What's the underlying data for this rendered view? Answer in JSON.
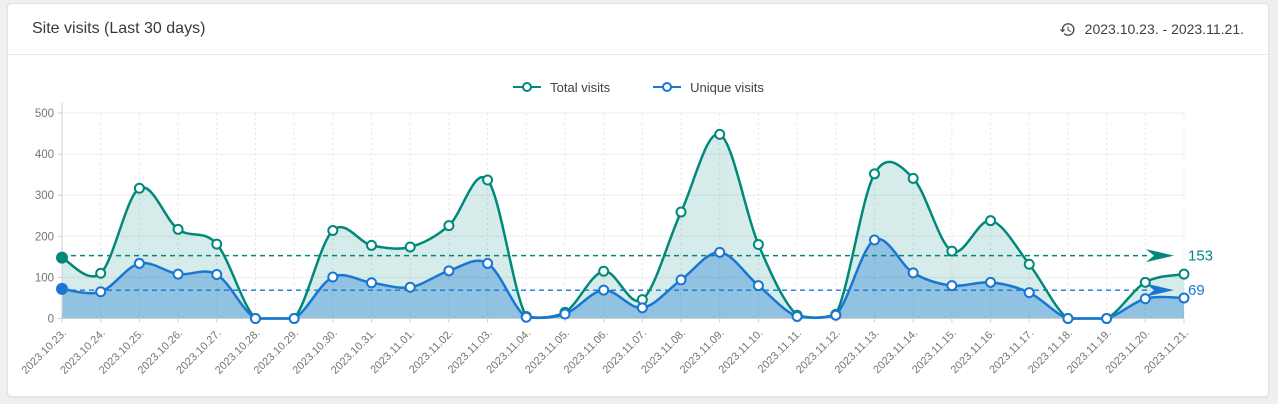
{
  "header": {
    "title": "Site visits (Last 30 days)",
    "date_range": "2023.10.23. - 2023.11.21.",
    "history_icon": "history-clock-icon"
  },
  "legend": [
    {
      "label": "Total visits",
      "color": "#00897b"
    },
    {
      "label": "Unique visits",
      "color": "#1976d2"
    }
  ],
  "colors": {
    "axis": "#cfcfcf",
    "grid": "#ededed",
    "grid_dashed": "#e4e4e4",
    "tick_text": "#757575",
    "total_accent": "#00897b",
    "unique_accent": "#1976d2"
  },
  "chart_data": {
    "type": "area",
    "title": "Site visits (Last 30 days)",
    "x": [
      "2023.10.23.",
      "2023.10.24.",
      "2023.10.25.",
      "2023.10.26.",
      "2023.10.27.",
      "2023.10.28.",
      "2023.10.29.",
      "2023.10.30.",
      "2023.10.31.",
      "2023.11.01.",
      "2023.11.02.",
      "2023.11.03.",
      "2023.11.04.",
      "2023.11.05.",
      "2023.11.06.",
      "2023.11.07.",
      "2023.11.08.",
      "2023.11.09.",
      "2023.11.10.",
      "2023.11.11.",
      "2023.11.12.",
      "2023.11.13.",
      "2023.11.14.",
      "2023.11.15.",
      "2023.11.16.",
      "2023.11.17.",
      "2023.11.18.",
      "2023.11.19.",
      "2023.11.20.",
      "2023.11.21."
    ],
    "series": [
      {
        "name": "Total visits",
        "color": "#00897b",
        "fill_opacity": 0.16,
        "values": [
          148,
          110,
          317,
          217,
          181,
          0,
          0,
          214,
          178,
          174,
          226,
          337,
          5,
          15,
          115,
          46,
          259,
          448,
          180,
          8,
          10,
          352,
          341,
          164,
          238,
          132,
          0,
          0,
          88,
          108
        ],
        "reference_line": {
          "value": 153,
          "label": "153"
        }
      },
      {
        "name": "Unique visits",
        "color": "#1976d2",
        "fill_opacity": 0.36,
        "values": [
          72,
          65,
          134,
          108,
          107,
          0,
          0,
          101,
          87,
          76,
          116,
          134,
          3,
          11,
          69,
          26,
          94,
          161,
          80,
          5,
          8,
          191,
          111,
          80,
          88,
          63,
          0,
          0,
          48,
          50
        ],
        "reference_line": {
          "value": 69,
          "label": "69"
        }
      }
    ],
    "ylim": [
      0,
      500
    ],
    "y_ticks": [
      0,
      100,
      200,
      300,
      400,
      500
    ],
    "grid": true,
    "legend_position": "top-center",
    "x_label_rotation": -45,
    "first_point_emphasized": true
  }
}
